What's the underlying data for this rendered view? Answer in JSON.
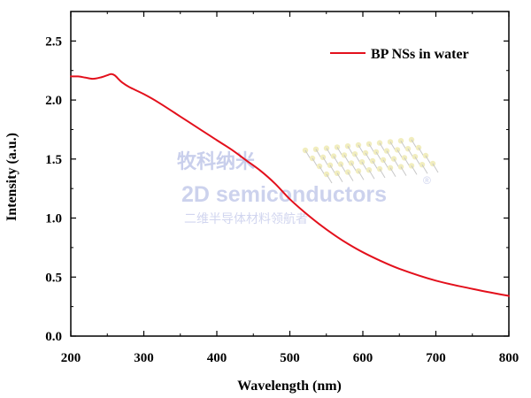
{
  "chart_data": {
    "type": "line",
    "title": "",
    "xlabel": "Wavelength (nm)",
    "ylabel": "Intensity (a.u.)",
    "xlim": [
      200,
      800
    ],
    "ylim": [
      0.0,
      2.75
    ],
    "xticks": [
      200,
      300,
      400,
      500,
      600,
      700,
      800
    ],
    "xtick_labels": [
      "200",
      "300",
      "400",
      "500",
      "600",
      "700",
      "800"
    ],
    "yticks": [
      0.0,
      0.5,
      1.0,
      1.5,
      2.0,
      2.5
    ],
    "ytick_labels": [
      "0.0",
      "0.5",
      "1.0",
      "1.5",
      "2.0",
      "2.5"
    ],
    "grid": false,
    "legend_position": "top-right",
    "series": [
      {
        "name": "BP NSs in water",
        "color": "#e3101c",
        "x": [
          200,
          210,
          220,
          230,
          240,
          250,
          255,
          260,
          265,
          270,
          280,
          300,
          320,
          350,
          380,
          400,
          420,
          440,
          460,
          480,
          500,
          520,
          540,
          560,
          580,
          600,
          620,
          650,
          700,
          750,
          800
        ],
        "y": [
          2.2,
          2.2,
          2.19,
          2.18,
          2.19,
          2.21,
          2.22,
          2.21,
          2.18,
          2.15,
          2.11,
          2.05,
          1.98,
          1.86,
          1.74,
          1.66,
          1.58,
          1.49,
          1.4,
          1.29,
          1.16,
          1.05,
          0.95,
          0.86,
          0.78,
          0.71,
          0.65,
          0.57,
          0.47,
          0.4,
          0.34
        ]
      }
    ]
  },
  "watermark": {
    "cn_title": "牧科纳米",
    "en_title": "2D semiconductors",
    "registered": "®",
    "cn_subtitle": "二维半导体材料领航者"
  }
}
